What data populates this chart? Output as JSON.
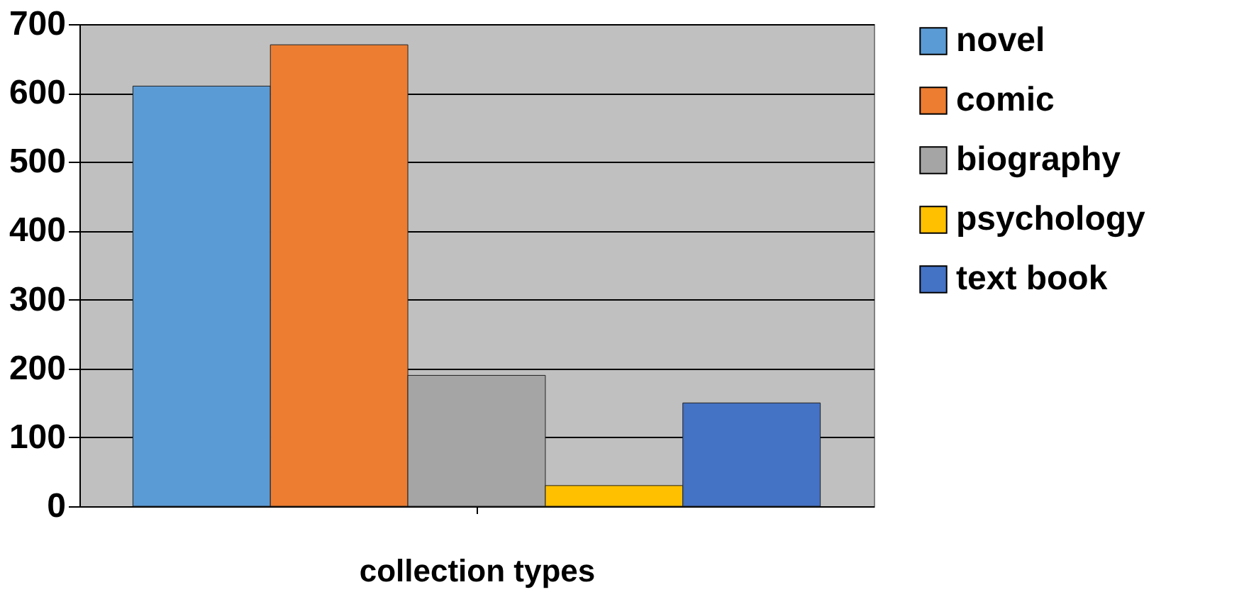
{
  "chart_data": {
    "type": "bar",
    "xlabel": "collection types",
    "categories": [
      null
    ],
    "series": [
      {
        "name": "novel",
        "color": "#5b9bd5",
        "values": [
          610
        ]
      },
      {
        "name": "comic",
        "color": "#ed7d31",
        "values": [
          670
        ]
      },
      {
        "name": "biography",
        "color": "#a5a5a5",
        "values": [
          190
        ]
      },
      {
        "name": "psychology",
        "color": "#ffc000",
        "values": [
          30
        ]
      },
      {
        "name": "text book",
        "color": "#4472c4",
        "values": [
          150
        ]
      }
    ],
    "ylim": [
      0,
      700
    ],
    "yticks": [
      0,
      100,
      200,
      300,
      400,
      500,
      600,
      700
    ],
    "grid": "y",
    "legend": "right",
    "tick_labels": "y"
  }
}
